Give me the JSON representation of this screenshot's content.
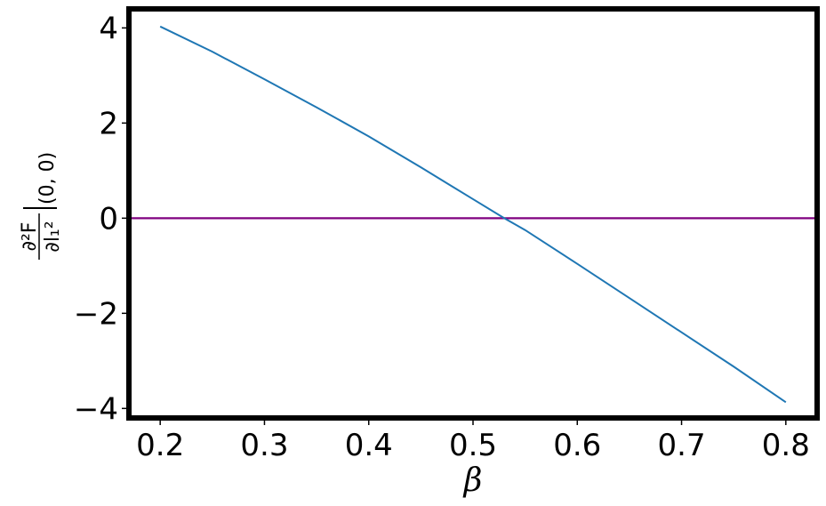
{
  "chart_data": {
    "type": "line",
    "title": "",
    "xlabel": "β",
    "ylabel": {
      "numerator": "∂²F",
      "denominator": "∂l₁²",
      "evaluated_at": "(0, 0)"
    },
    "xlim": [
      0.17,
      0.83
    ],
    "ylim": [
      -4.2,
      4.4
    ],
    "x_ticks": [
      0.2,
      0.3,
      0.4,
      0.5,
      0.6,
      0.7,
      0.8
    ],
    "x_tick_labels": [
      "0.2",
      "0.3",
      "0.4",
      "0.5",
      "0.6",
      "0.7",
      "0.8"
    ],
    "y_ticks": [
      4,
      2,
      0,
      -2,
      -4
    ],
    "y_tick_labels": [
      "4",
      "2",
      "0",
      "−2",
      "−4"
    ],
    "grid": false,
    "series": [
      {
        "color": "#1f77b4",
        "x": [
          0.2,
          0.25,
          0.3,
          0.35,
          0.4,
          0.45,
          0.5,
          0.53,
          0.55,
          0.6,
          0.65,
          0.7,
          0.75,
          0.8
        ],
        "y": [
          4.03,
          3.5,
          2.92,
          2.33,
          1.72,
          1.07,
          0.4,
          0.0,
          -0.25,
          -0.96,
          -1.68,
          -2.4,
          -3.12,
          -3.87
        ]
      }
    ],
    "reference_lines": [
      {
        "orientation": "horizontal",
        "y": 0,
        "color": "#800080"
      }
    ]
  }
}
